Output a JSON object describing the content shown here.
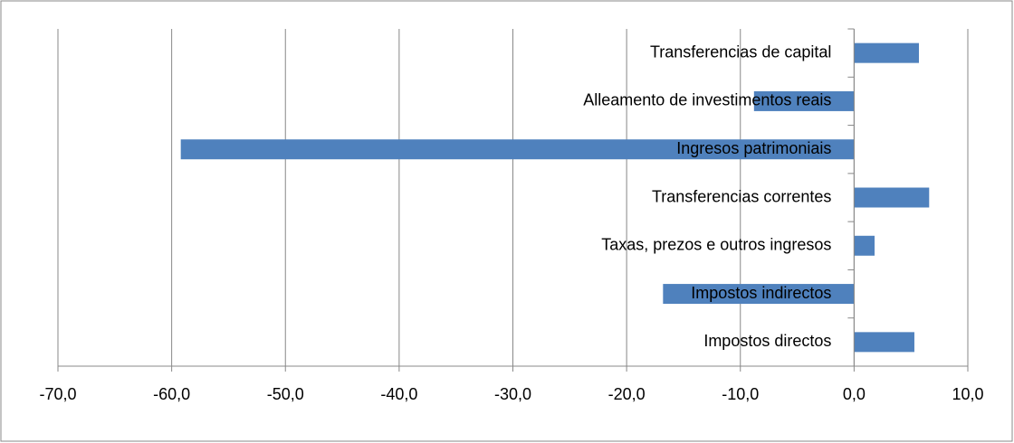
{
  "chart_data": {
    "type": "hbar",
    "categories": [
      "Impostos directos",
      "Impostos indirectos",
      "Taxas, prezos e outros ingresos",
      "Transferencias correntes",
      "Ingresos patrimoniais",
      "Alleamento de investimentos reais",
      "Transferencias de capital"
    ],
    "values": [
      5.3,
      -16.8,
      1.8,
      6.6,
      -59.2,
      -8.8,
      5.7
    ],
    "color": "#4f81bd",
    "xlim": [
      -70,
      10
    ],
    "xticks": [
      {
        "value": -70,
        "label": "-70,0"
      },
      {
        "value": -60,
        "label": "-60,0"
      },
      {
        "value": -50,
        "label": "-50,0"
      },
      {
        "value": -40,
        "label": "-40,0"
      },
      {
        "value": -30,
        "label": "-30,0"
      },
      {
        "value": -20,
        "label": "-20,0"
      },
      {
        "value": -10,
        "label": "-10,0"
      },
      {
        "value": 0,
        "label": "0,0"
      },
      {
        "value": 10,
        "label": "10,0"
      }
    ],
    "grid": true
  }
}
